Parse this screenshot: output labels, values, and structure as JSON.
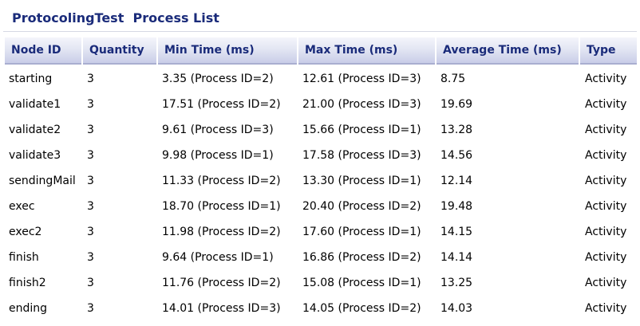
{
  "title": "ProtocolingTest  Process List",
  "table": {
    "columns": [
      "Node ID",
      "Quantity",
      "Min Time (ms)",
      "Max Time (ms)",
      "Average Time (ms)",
      "Type"
    ],
    "rows": [
      [
        "starting",
        "3",
        "3.35 (Process ID=2)",
        "12.61 (Process ID=3)",
        "8.75",
        "Activity"
      ],
      [
        "validate1",
        "3",
        "17.51 (Process ID=2)",
        "21.00 (Process ID=3)",
        "19.69",
        "Activity"
      ],
      [
        "validate2",
        "3",
        "9.61 (Process ID=3)",
        "15.66 (Process ID=1)",
        "13.28",
        "Activity"
      ],
      [
        "validate3",
        "3",
        "9.98 (Process ID=1)",
        "17.58 (Process ID=3)",
        "14.56",
        "Activity"
      ],
      [
        "sendingMail",
        "3",
        "11.33 (Process ID=2)",
        "13.30 (Process ID=1)",
        "12.14",
        "Activity"
      ],
      [
        "exec",
        "3",
        "18.70 (Process ID=1)",
        "20.40 (Process ID=2)",
        "19.48",
        "Activity"
      ],
      [
        "exec2",
        "3",
        "11.98 (Process ID=2)",
        "17.60 (Process ID=1)",
        "14.15",
        "Activity"
      ],
      [
        "finish",
        "3",
        "9.64 (Process ID=1)",
        "16.86 (Process ID=2)",
        "14.14",
        "Activity"
      ],
      [
        "finish2",
        "3",
        "11.76 (Process ID=2)",
        "15.08 (Process ID=1)",
        "13.25",
        "Activity"
      ],
      [
        "ending",
        "3",
        "14.01 (Process ID=3)",
        "14.05 (Process ID=2)",
        "14.03",
        "Activity"
      ]
    ]
  },
  "colors": {
    "title": "#1a2b7a",
    "header_text": "#1a2b7a",
    "header_bg_top": "#f4f5fb",
    "header_bg_bottom": "#c9cde8"
  }
}
